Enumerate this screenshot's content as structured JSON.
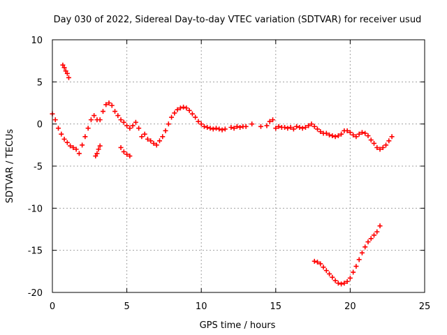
{
  "chart_data": {
    "type": "scatter",
    "title": "Day 030 of 2022, Sidereal Day-to-day VTEC variation (SDTVAR) for receiver usud",
    "xlabel": "GPS time / hours",
    "ylabel": "SDTVAR / TECUs",
    "xlim": [
      0,
      25
    ],
    "ylim": [
      -20,
      10
    ],
    "xticks": [
      0,
      5,
      10,
      15,
      20,
      25
    ],
    "yticks": [
      10,
      5,
      0,
      -5,
      -10,
      -15,
      -20
    ],
    "grid": true,
    "marker": "+",
    "series": [
      {
        "name": "SDTVAR",
        "color": "#ff0000",
        "x": [
          0.0,
          0.2,
          0.4,
          0.6,
          0.8,
          1.0,
          1.2,
          1.4,
          1.6,
          1.8,
          2.0,
          2.2,
          2.4,
          2.6,
          2.8,
          3.0,
          3.2,
          3.4,
          3.6,
          3.8,
          4.0,
          4.2,
          4.4,
          4.6,
          4.8,
          5.0,
          5.2,
          5.4,
          5.6,
          5.8,
          6.0,
          6.2,
          6.4,
          6.6,
          6.8,
          7.0,
          7.2,
          7.4,
          7.6,
          7.8,
          8.0,
          8.2,
          8.4,
          8.6,
          8.8,
          9.0,
          9.2,
          9.4,
          9.6,
          9.8,
          10.0,
          10.2,
          10.4,
          10.6,
          10.8,
          11.0,
          11.2,
          11.4,
          11.6,
          12.0,
          12.2,
          12.4,
          12.6,
          12.8,
          13.0,
          13.4,
          14.0,
          14.4,
          14.6,
          14.8,
          15.0,
          15.2,
          15.4,
          15.6,
          15.8,
          16.0,
          16.2,
          16.4,
          16.6,
          16.8,
          17.0,
          17.2,
          17.4,
          17.6,
          17.8,
          18.0,
          18.2,
          18.4,
          18.6,
          18.8,
          19.0,
          19.2,
          19.4,
          19.6,
          19.8,
          20.0,
          20.2,
          20.4,
          20.6,
          20.8,
          21.0,
          21.2,
          21.4,
          21.6,
          21.8,
          22.0,
          22.2,
          22.4,
          22.6,
          22.8,
          0.7,
          0.8,
          0.9,
          1.0,
          1.1,
          2.9,
          3.0,
          3.1,
          3.2,
          4.6,
          4.8,
          5.0,
          5.2,
          17.6,
          17.8,
          18.0,
          18.2,
          18.4,
          18.6,
          18.8,
          19.0,
          19.2,
          19.4,
          19.6,
          19.8,
          20.0,
          20.2,
          20.4,
          20.6,
          20.8,
          21.0,
          21.2,
          21.4,
          21.6,
          21.8,
          22.0
        ],
        "y": [
          1.2,
          0.5,
          -0.5,
          -1.2,
          -1.8,
          -2.2,
          -2.6,
          -2.8,
          -3.0,
          -3.5,
          -2.5,
          -1.5,
          -0.5,
          0.5,
          1.0,
          0.5,
          0.5,
          1.5,
          2.3,
          2.5,
          2.2,
          1.5,
          1.0,
          0.5,
          0.2,
          -0.2,
          -0.5,
          -0.2,
          0.2,
          -0.5,
          -1.5,
          -1.2,
          -1.8,
          -2.0,
          -2.3,
          -2.5,
          -2.0,
          -1.5,
          -0.8,
          0.0,
          0.8,
          1.3,
          1.7,
          1.9,
          2.0,
          1.9,
          1.6,
          1.2,
          0.8,
          0.3,
          0.0,
          -0.3,
          -0.4,
          -0.5,
          -0.6,
          -0.5,
          -0.6,
          -0.7,
          -0.6,
          -0.4,
          -0.5,
          -0.3,
          -0.4,
          -0.3,
          -0.3,
          0.0,
          -0.3,
          -0.2,
          0.3,
          0.5,
          -0.5,
          -0.3,
          -0.4,
          -0.4,
          -0.5,
          -0.4,
          -0.6,
          -0.3,
          -0.4,
          -0.5,
          -0.4,
          -0.2,
          0.0,
          -0.3,
          -0.6,
          -0.9,
          -1.1,
          -1.1,
          -1.3,
          -1.4,
          -1.5,
          -1.4,
          -1.2,
          -0.8,
          -0.8,
          -1.0,
          -1.3,
          -1.5,
          -1.2,
          -1.0,
          -1.1,
          -1.4,
          -1.9,
          -2.3,
          -2.8,
          -3.0,
          -2.8,
          -2.5,
          -2.0,
          -1.5,
          7.0,
          6.7,
          6.3,
          6.0,
          5.5,
          -3.8,
          -3.5,
          -3.0,
          -2.6,
          -2.8,
          -3.3,
          -3.6,
          -3.8,
          -16.3,
          -16.4,
          -16.6,
          -17.0,
          -17.4,
          -17.8,
          -18.2,
          -18.6,
          -18.9,
          -19.0,
          -18.9,
          -18.7,
          -18.3,
          -17.6,
          -16.9,
          -16.1,
          -15.3,
          -14.6,
          -14.0,
          -13.6,
          -13.2,
          -12.8,
          -12.1
        ]
      }
    ]
  }
}
